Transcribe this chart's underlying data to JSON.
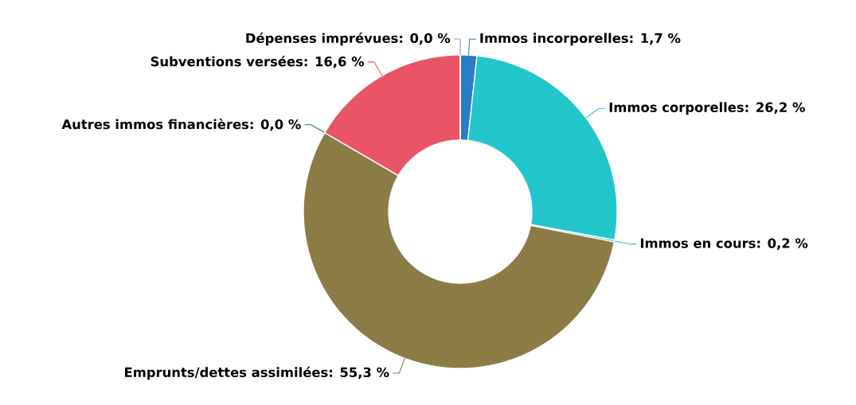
{
  "chart_data": {
    "type": "donut",
    "categories": [
      "Immos incorporelles: 1,7 %",
      "Immos corporelles: 26,2 %",
      "Immos en cours: 0,2 %",
      "Emprunts/dettes assimilées: 55,3 %",
      "Autres immos financières: 0,0 %",
      "Subventions versées: 16,6 %",
      "Dépenses imprévues: 0,0 %"
    ],
    "values": [
      1.7,
      26.2,
      0.2,
      55.3,
      0.0,
      16.6,
      0.0
    ],
    "colors": [
      "#2b7cc7",
      "#22c5c9",
      "#2fc7b6",
      "#8b7b45",
      "#2f7a34",
      "#ea5467",
      "#b07de0"
    ]
  }
}
